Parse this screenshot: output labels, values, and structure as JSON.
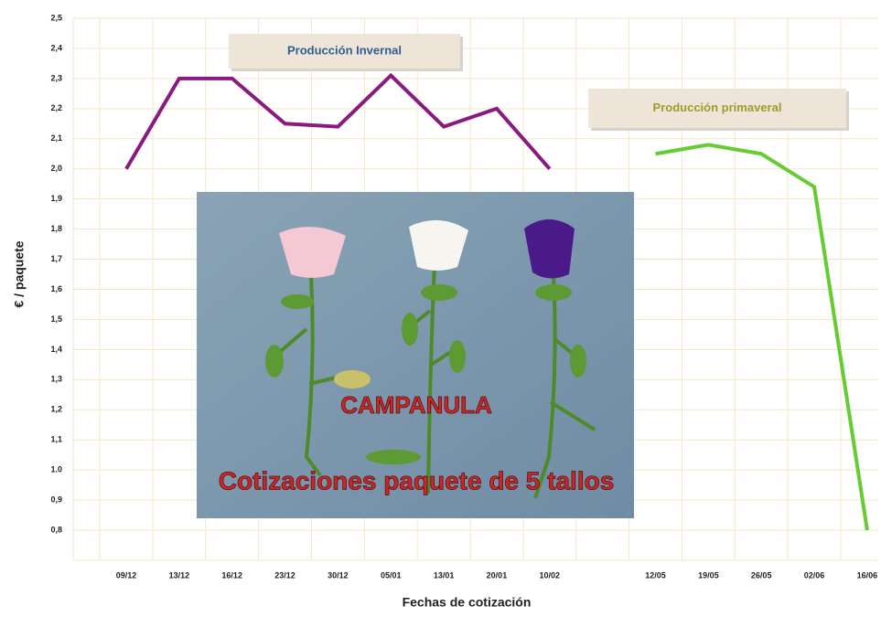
{
  "chart_data": {
    "type": "line",
    "x_label": "Fechas de cotización",
    "y_label": "€ / paquete",
    "categories": [
      "09/12",
      "13/12",
      "16/12",
      "23/12",
      "30/12",
      "05/01",
      "13/01",
      "20/01",
      "10/02",
      null,
      "12/05",
      "19/05",
      "26/05",
      "02/06",
      "16/06"
    ],
    "series": [
      {
        "name": "Producción Invernal",
        "color": "#8b1a80",
        "label_color": "#2f5f8f",
        "values": [
          2.0,
          2.3,
          2.3,
          2.15,
          2.14,
          2.31,
          2.14,
          2.2,
          2.0,
          null,
          null,
          null,
          null,
          null,
          null
        ]
      },
      {
        "name": "Producción primaveral",
        "color": "#66cc33",
        "label_color": "#a09a2a",
        "values": [
          null,
          null,
          null,
          null,
          null,
          null,
          null,
          null,
          null,
          null,
          2.05,
          2.08,
          2.05,
          1.94,
          0.8
        ]
      }
    ],
    "ylim": [
      0.7,
      2.5
    ],
    "yticks": [
      {
        "value": 0.8,
        "label": "0,8"
      },
      {
        "value": 0.9,
        "label": "0,9"
      },
      {
        "value": 1.0,
        "label": "1.0"
      },
      {
        "value": 1.1,
        "label": "1,1"
      },
      {
        "value": 1.2,
        "label": "1,2"
      },
      {
        "value": 1.3,
        "label": "1,3"
      },
      {
        "value": 1.4,
        "label": "1,4"
      },
      {
        "value": 1.5,
        "label": "1,5"
      },
      {
        "value": 1.6,
        "label": "1,6"
      },
      {
        "value": 1.7,
        "label": "1,7"
      },
      {
        "value": 1.8,
        "label": "1,8"
      },
      {
        "value": 1.9,
        "label": "1,9"
      },
      {
        "value": 2.0,
        "label": "2,0"
      },
      {
        "value": 2.1,
        "label": "2,1"
      },
      {
        "value": 2.2,
        "label": "2,2"
      },
      {
        "value": 2.3,
        "label": "2,3"
      },
      {
        "value": 2.4,
        "label": "2,4"
      },
      {
        "value": 2.5,
        "label": "2,5"
      }
    ],
    "grid": true,
    "photo_labels": [
      "CAMPANULA",
      "Cotizaciones paquete de 5 tallos"
    ]
  }
}
